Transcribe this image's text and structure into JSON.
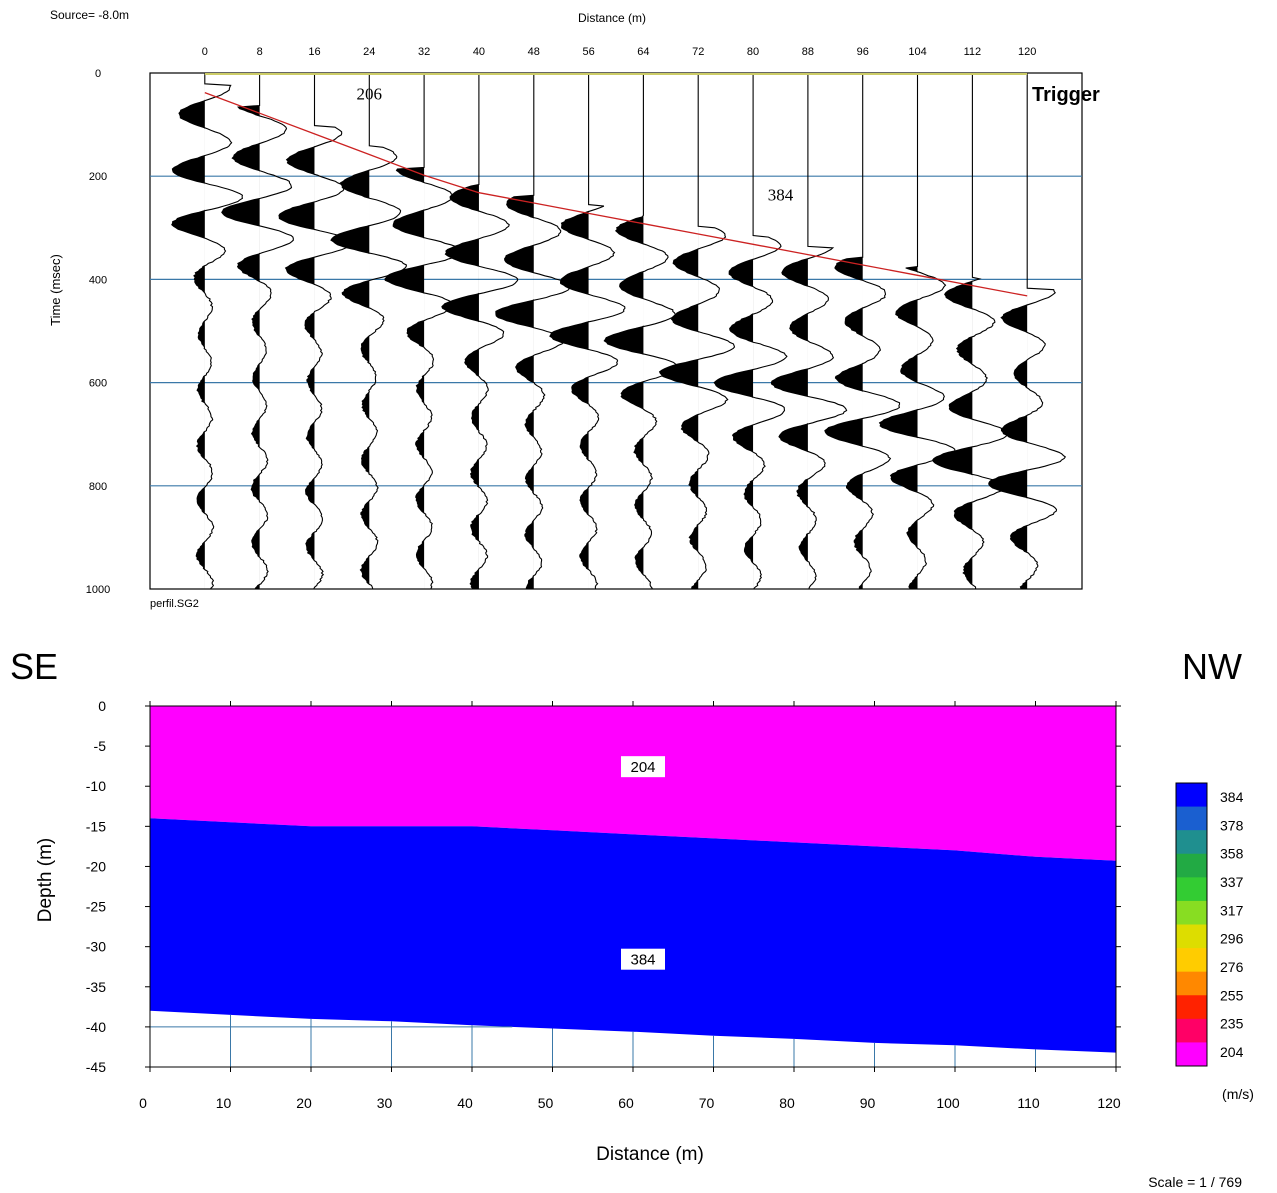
{
  "seismogram": {
    "source_label": "Source= -8.0m",
    "file_label": "perfil.SG2",
    "trigger_label": "Trigger",
    "chart_data": {
      "type": "line",
      "title": "",
      "xlabel": "Distance (m)",
      "ylabel": "Time (msec)",
      "x_ticks": [
        0,
        8,
        16,
        24,
        32,
        40,
        48,
        56,
        64,
        72,
        80,
        88,
        96,
        104,
        112,
        120
      ],
      "y_ticks": [
        0,
        200,
        400,
        600,
        800,
        1000
      ],
      "xlim": [
        -8,
        128
      ],
      "ylim": [
        0,
        1000
      ],
      "receiver_offsets": [
        0,
        8,
        16,
        24,
        32,
        40,
        48,
        56,
        64,
        72,
        80,
        88,
        96,
        104,
        112,
        120
      ],
      "first_break_picks": {
        "x": [
          0,
          8,
          16,
          24,
          32,
          40,
          48,
          56,
          64,
          72,
          80,
          88,
          96,
          104,
          112,
          120
        ],
        "t": [
          38,
          78,
          118,
          158,
          198,
          232,
          252,
          272,
          292,
          312,
          332,
          352,
          372,
          392,
          412,
          432
        ]
      },
      "velocity_labels": [
        {
          "text": "206",
          "x": 24,
          "t": 40
        },
        {
          "text": "384",
          "x": 84,
          "t": 235
        }
      ]
    }
  },
  "direction": {
    "left": "SE",
    "right": "NW"
  },
  "model": {
    "scale_label": "Scale = 1 / 769",
    "unit_label": "(m/s)",
    "chart_data": {
      "type": "area",
      "title": "",
      "xlabel": "Distance (m)",
      "ylabel": "Depth (m)",
      "x_ticks": [
        0,
        10,
        20,
        30,
        40,
        50,
        60,
        70,
        80,
        90,
        100,
        110,
        120
      ],
      "y_ticks": [
        0,
        -5,
        -10,
        -15,
        -20,
        -25,
        -30,
        -35,
        -40,
        -45
      ],
      "xlim": [
        0,
        120
      ],
      "ylim": [
        -45,
        0
      ],
      "layers": [
        {
          "velocity": "204",
          "color": "#ff00ff",
          "label_x": 60,
          "label_y": -7.5
        },
        {
          "velocity": "384",
          "color": "#0000ff",
          "label_x": 60,
          "label_y": -31.5
        }
      ],
      "interface_top": {
        "x": [
          0,
          10,
          20,
          30,
          40,
          50,
          60,
          70,
          80,
          90,
          100,
          110,
          120
        ],
        "depth": [
          -14,
          -14.5,
          -15,
          -15,
          -15,
          -15.5,
          -16,
          -16.5,
          -17,
          -17.5,
          -18,
          -18.8,
          -19.3
        ]
      },
      "interface_bottom": {
        "x": [
          0,
          10,
          20,
          30,
          40,
          50,
          60,
          70,
          80,
          90,
          100,
          110,
          120
        ],
        "depth": [
          -38,
          -38.5,
          -39,
          -39.3,
          -39.8,
          -40.2,
          -40.6,
          -41.1,
          -41.5,
          -42,
          -42.3,
          -42.8,
          -43.2
        ]
      },
      "colorbar": {
        "labels": [
          "384",
          "378",
          "358",
          "337",
          "317",
          "296",
          "276",
          "255",
          "235",
          "204"
        ],
        "colors": [
          "#0000ff",
          "#1a5fd0",
          "#1f8f8f",
          "#22aa44",
          "#33cc33",
          "#88dd22",
          "#dddd00",
          "#ffcc00",
          "#ff8800",
          "#ff2200",
          "#ff0066",
          "#ff00ff"
        ]
      }
    }
  }
}
